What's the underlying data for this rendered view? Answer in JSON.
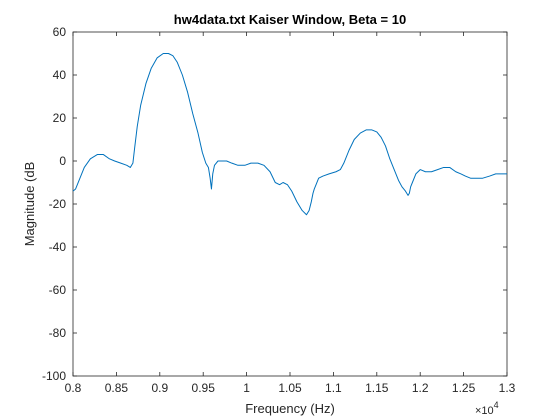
{
  "chart_data": {
    "type": "line",
    "title": "hw4data.txt Kaiser Window, Beta = 10",
    "xlabel": "Frequency (Hz)",
    "ylabel": "Magnitude (dB",
    "x_exponent_label": "×10",
    "x_exponent_power": "4",
    "xlim": [
      0.8,
      1.3
    ],
    "ylim": [
      -100,
      60
    ],
    "xticks": [
      0.8,
      0.85,
      0.9,
      0.95,
      1,
      1.05,
      1.1,
      1.15,
      1.2,
      1.25,
      1.3
    ],
    "xtick_labels": [
      "0.8",
      "0.85",
      "0.9",
      "0.95",
      "1",
      "1.05",
      "1.1",
      "1.15",
      "1.2",
      "1.25",
      "1.3"
    ],
    "yticks": [
      60,
      40,
      20,
      0,
      -20,
      -40,
      -60,
      -80,
      -100
    ],
    "ytick_labels": [
      "60",
      "40",
      "20",
      "0",
      "-20",
      "-40",
      "-60",
      "-80",
      "-100"
    ],
    "grid": false,
    "line_color": "#0072BD",
    "series": [
      {
        "x": [
          0.8,
          0.803,
          0.808,
          0.813,
          0.82,
          0.828,
          0.835,
          0.842,
          0.848,
          0.855,
          0.862,
          0.866,
          0.869,
          0.871,
          0.874,
          0.878,
          0.884,
          0.89,
          0.897,
          0.904,
          0.91,
          0.915,
          0.92,
          0.926,
          0.932,
          0.938,
          0.944,
          0.949,
          0.953,
          0.956,
          0.958,
          0.9595,
          0.961,
          0.963,
          0.967,
          0.972,
          0.977,
          0.983,
          0.99,
          0.998,
          1.005,
          1.013,
          1.02,
          1.027,
          1.033,
          1.038,
          1.042,
          1.047,
          1.052,
          1.058,
          1.064,
          1.069,
          1.072,
          1.0745,
          1.0765,
          1.078,
          1.08,
          1.083,
          1.088,
          1.095,
          1.103,
          1.108,
          1.112,
          1.118,
          1.124,
          1.131,
          1.138,
          1.144,
          1.15,
          1.155,
          1.16,
          1.165,
          1.17,
          1.175,
          1.179,
          1.183,
          1.186,
          1.1875,
          1.189,
          1.191,
          1.195,
          1.2,
          1.206,
          1.213,
          1.22,
          1.227,
          1.234,
          1.241,
          1.247,
          1.252,
          1.258,
          1.265,
          1.272,
          1.28,
          1.287,
          1.293,
          1.297,
          1.3
        ],
        "y": [
          -14,
          -13,
          -8,
          -3,
          1,
          3,
          3,
          1,
          0,
          -1,
          -2,
          -3,
          -1,
          6,
          16,
          26,
          36,
          43,
          48,
          50,
          50,
          49,
          46,
          40,
          32,
          22,
          13,
          4,
          -1,
          -3,
          -8,
          -13,
          -6,
          -2,
          0,
          0,
          0,
          -1,
          -2,
          -2,
          -1,
          -1,
          -2,
          -5,
          -10,
          -11,
          -10,
          -11,
          -14,
          -19,
          -23,
          -25,
          -23,
          -19,
          -15,
          -13,
          -11,
          -8,
          -7,
          -6,
          -5,
          -4,
          -1,
          5,
          10,
          13,
          14.5,
          14.5,
          13.5,
          11,
          7,
          1,
          -4,
          -9,
          -12,
          -14,
          -16,
          -15,
          -12,
          -10,
          -6,
          -4,
          -5,
          -5,
          -4,
          -3,
          -3,
          -5,
          -6,
          -7,
          -8,
          -8,
          -8,
          -7,
          -6,
          -6,
          -6,
          -6
        ]
      }
    ]
  }
}
